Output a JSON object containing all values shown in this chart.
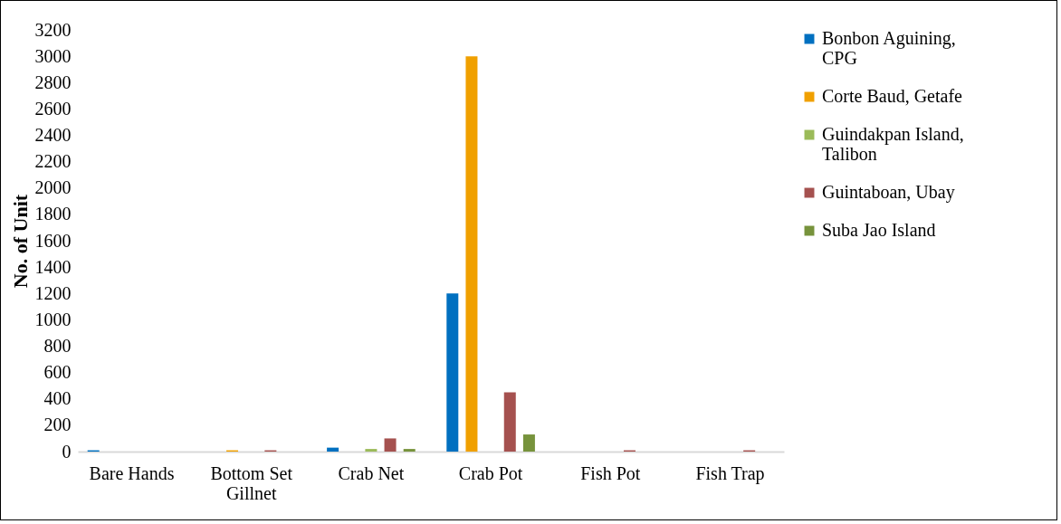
{
  "chart_data": {
    "type": "bar",
    "ylabel": "No. of Unit",
    "categories": [
      "Bare Hands",
      "Bottom Set Gillnet",
      "Crab Net",
      "Crab Pot",
      "Fish Pot",
      "Fish Trap"
    ],
    "series": [
      {
        "name": "Bonbon Aguining, CPG",
        "color": "#0070c0",
        "values": [
          10,
          0,
          30,
          1200,
          0,
          0
        ]
      },
      {
        "name": "Corte Baud, Getafe",
        "color": "#f0a000",
        "values": [
          0,
          10,
          0,
          3000,
          0,
          0
        ]
      },
      {
        "name": "Guindakpan Island, Talibon",
        "color": "#9bbb59",
        "values": [
          0,
          0,
          20,
          0,
          0,
          0
        ]
      },
      {
        "name": "Guintaboan, Ubay",
        "color": "#a5514f",
        "values": [
          0,
          10,
          100,
          450,
          10,
          10
        ]
      },
      {
        "name": "Suba Jao Island",
        "color": "#77933c",
        "values": [
          0,
          0,
          20,
          130,
          0,
          0
        ]
      }
    ],
    "ylim": [
      0,
      3200
    ],
    "yticks": [
      0,
      200,
      400,
      600,
      800,
      1000,
      1200,
      1400,
      1600,
      1800,
      2000,
      2200,
      2400,
      2600,
      2800,
      3000,
      3200
    ],
    "grid": false,
    "legend": "right"
  }
}
